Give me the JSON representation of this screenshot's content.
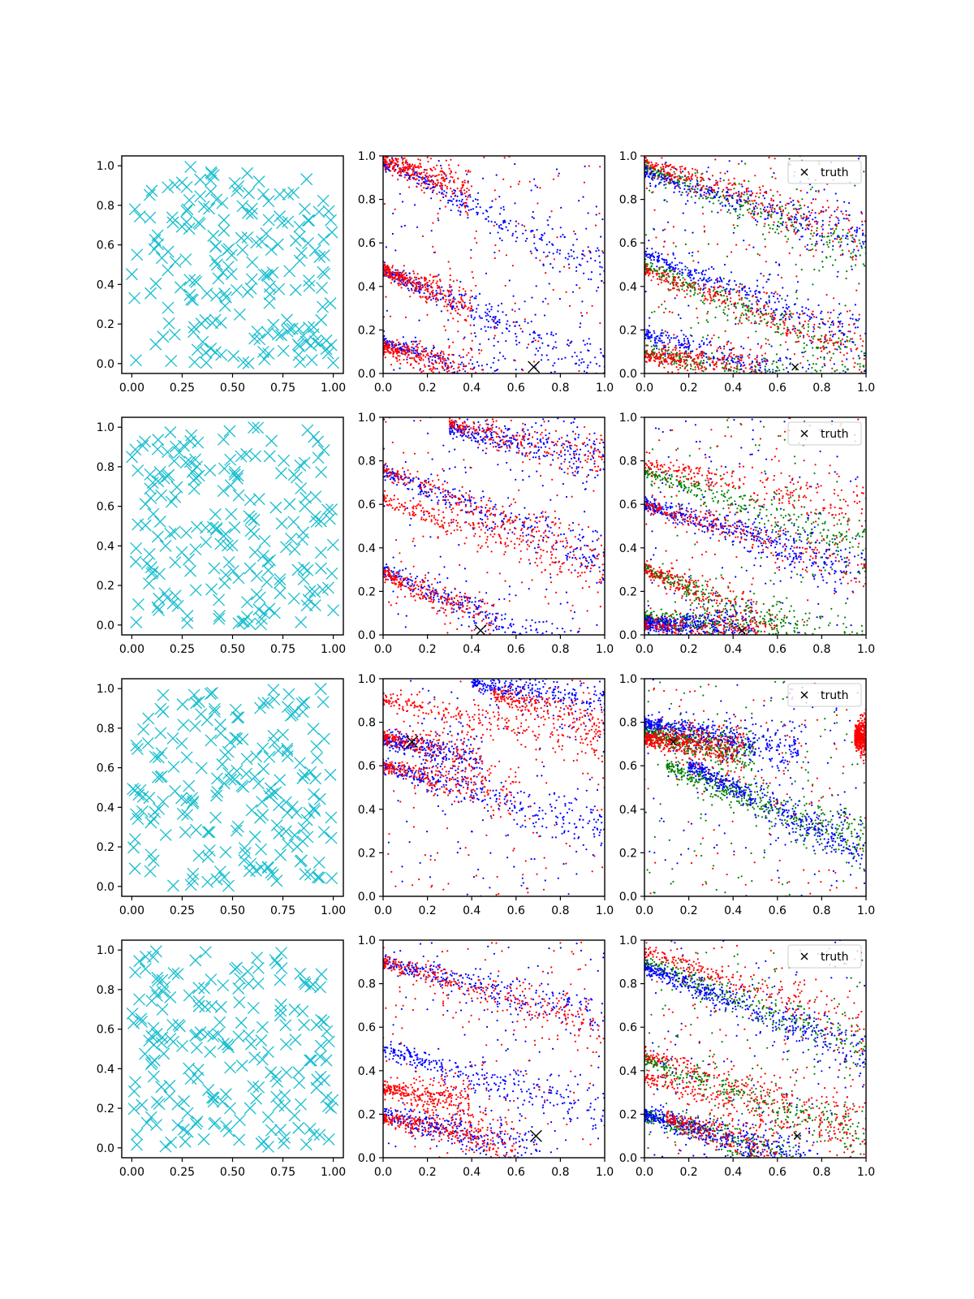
{
  "figure": {
    "rows": 4,
    "cols": 3
  },
  "colors": {
    "samples": "#17becf",
    "red": "#ff0000",
    "blue": "#0000ff",
    "green": "#008000",
    "truth": "#000000"
  },
  "legend_label": "truth",
  "chart_data": [
    {
      "type": "scatter",
      "row": 0,
      "col": 0,
      "panel": "samples",
      "xlim": [
        -0.05,
        1.05
      ],
      "ylim": [
        -0.05,
        1.05
      ],
      "xticks": [
        "0.00",
        "0.25",
        "0.50",
        "0.75",
        "1.00"
      ],
      "yticks": [
        "0.0",
        "0.2",
        "0.4",
        "0.6",
        "0.8",
        "1.0"
      ],
      "marker": "x",
      "n_points": 200,
      "distribution": "uniform"
    },
    {
      "type": "scatter",
      "row": 0,
      "col": 1,
      "panel": "posterior",
      "xlim": [
        0,
        1
      ],
      "ylim": [
        0,
        1
      ],
      "xticks": [
        "0.0",
        "0.2",
        "0.4",
        "0.6",
        "0.8",
        "1.0"
      ],
      "yticks": [
        "0.0",
        "0.2",
        "0.4",
        "0.6",
        "0.8",
        "1.0"
      ],
      "truth": [
        0.68,
        0.03
      ],
      "series": [
        {
          "color": "blue",
          "bands": [
            {
              "x0": 0.0,
              "y0": 0.97,
              "slope": -0.5
            },
            {
              "x0": 0.0,
              "y0": 0.47,
              "slope": -0.45
            },
            {
              "x0": 0.0,
              "y0": 0.15,
              "slope": -0.35
            }
          ]
        },
        {
          "color": "red",
          "bands": [
            {
              "x0": 0.0,
              "y0": 0.98,
              "slope": -0.35,
              "x_end": 0.4
            },
            {
              "x0": 0.0,
              "y0": 0.48,
              "slope": -0.45,
              "x_end": 0.4
            },
            {
              "x0": 0.0,
              "y0": 0.12,
              "slope": -0.3,
              "x_end": 0.45
            }
          ]
        }
      ]
    },
    {
      "type": "scatter",
      "row": 0,
      "col": 2,
      "panel": "posterior",
      "xlim": [
        0,
        1
      ],
      "ylim": [
        0,
        1
      ],
      "xticks": [
        "0.0",
        "0.2",
        "0.4",
        "0.6",
        "0.8",
        "1.0"
      ],
      "yticks": [
        "0.0",
        "0.2",
        "0.4",
        "0.6",
        "0.8",
        "1.0"
      ],
      "truth": [
        0.68,
        0.03
      ],
      "legend": true,
      "series": [
        {
          "color": "green",
          "bands": [
            {
              "x0": 0.0,
              "y0": 0.95,
              "slope": -0.4
            },
            {
              "x0": 0.0,
              "y0": 0.5,
              "slope": -0.45
            },
            {
              "x0": 0.0,
              "y0": 0.1,
              "slope": -0.2
            }
          ]
        },
        {
          "color": "blue",
          "bands": [
            {
              "x0": 0.0,
              "y0": 0.92,
              "slope": -0.3
            },
            {
              "x0": 0.0,
              "y0": 0.55,
              "slope": -0.4
            },
            {
              "x0": 0.0,
              "y0": 0.18,
              "slope": -0.3
            }
          ]
        },
        {
          "color": "red",
          "bands": [
            {
              "x0": 0.0,
              "y0": 0.97,
              "slope": -0.35
            },
            {
              "x0": 0.0,
              "y0": 0.48,
              "slope": -0.4
            },
            {
              "x0": 0.0,
              "y0": 0.08,
              "slope": -0.1,
              "x_end": 0.55
            }
          ]
        }
      ]
    },
    {
      "type": "scatter",
      "row": 1,
      "col": 0,
      "panel": "samples",
      "xlim": [
        -0.05,
        1.05
      ],
      "ylim": [
        -0.05,
        1.05
      ],
      "xticks": [
        "0.00",
        "0.25",
        "0.50",
        "0.75",
        "1.00"
      ],
      "yticks": [
        "0.0",
        "0.2",
        "0.4",
        "0.6",
        "0.8",
        "1.0"
      ],
      "marker": "x",
      "n_points": 200,
      "distribution": "uniform"
    },
    {
      "type": "scatter",
      "row": 1,
      "col": 1,
      "panel": "posterior",
      "xlim": [
        0,
        1
      ],
      "ylim": [
        0,
        1
      ],
      "xticks": [
        "0.0",
        "0.2",
        "0.4",
        "0.6",
        "0.8",
        "1.0"
      ],
      "yticks": [
        "0.0",
        "0.2",
        "0.4",
        "0.6",
        "0.8",
        "1.0"
      ],
      "truth": [
        0.44,
        0.02
      ],
      "series": [
        {
          "color": "blue",
          "bands": [
            {
              "x0": 0.0,
              "y0": 0.75,
              "slope": -0.4
            },
            {
              "x0": 0.0,
              "y0": 0.3,
              "slope": -0.45
            },
            {
              "x0": 0.3,
              "y0": 0.95,
              "slope": -0.2
            }
          ]
        },
        {
          "color": "red",
          "bands": [
            {
              "x0": 0.0,
              "y0": 0.76,
              "slope": -0.4
            },
            {
              "x0": 0.0,
              "y0": 0.62,
              "slope": -0.35
            },
            {
              "x0": 0.0,
              "y0": 0.28,
              "slope": -0.45,
              "x_end": 0.5
            },
            {
              "x0": 0.3,
              "y0": 0.97,
              "slope": -0.25
            }
          ]
        }
      ]
    },
    {
      "type": "scatter",
      "row": 1,
      "col": 2,
      "panel": "posterior",
      "xlim": [
        0,
        1
      ],
      "ylim": [
        0,
        1
      ],
      "xticks": [
        "0.0",
        "0.2",
        "0.4",
        "0.6",
        "0.8",
        "1.0"
      ],
      "yticks": [
        "0.0",
        "0.2",
        "0.4",
        "0.6",
        "0.8",
        "1.0"
      ],
      "truth": [
        0.44,
        0.02
      ],
      "legend": true,
      "series": [
        {
          "color": "green",
          "bands": [
            {
              "x0": 0.0,
              "y0": 0.75,
              "slope": -0.35
            },
            {
              "x0": 0.0,
              "y0": 0.3,
              "slope": -0.4
            },
            {
              "x0": 0.0,
              "y0": 0.08,
              "slope": -0.1,
              "x_end": 0.6
            }
          ]
        },
        {
          "color": "blue",
          "bands": [
            {
              "x0": 0.0,
              "y0": 0.6,
              "slope": -0.3
            },
            {
              "x0": 0.0,
              "y0": 0.05,
              "slope": -0.05,
              "x_end": 0.5
            }
          ]
        },
        {
          "color": "red",
          "bands": [
            {
              "x0": 0.0,
              "y0": 0.78,
              "slope": -0.2
            },
            {
              "x0": 0.0,
              "y0": 0.6,
              "slope": -0.3
            },
            {
              "x0": 0.0,
              "y0": 0.3,
              "slope": -0.4,
              "x_end": 0.5
            },
            {
              "x0": 0.0,
              "y0": 0.05,
              "slope": -0.08,
              "x_end": 0.6
            }
          ]
        }
      ]
    },
    {
      "type": "scatter",
      "row": 2,
      "col": 0,
      "panel": "samples",
      "xlim": [
        -0.05,
        1.05
      ],
      "ylim": [
        -0.05,
        1.05
      ],
      "xticks": [
        "0.00",
        "0.25",
        "0.50",
        "0.75",
        "1.00"
      ],
      "yticks": [
        "0.0",
        "0.2",
        "0.4",
        "0.6",
        "0.8",
        "1.0"
      ],
      "marker": "x",
      "n_points": 200,
      "distribution": "uniform"
    },
    {
      "type": "scatter",
      "row": 2,
      "col": 1,
      "panel": "posterior",
      "xlim": [
        0,
        1
      ],
      "ylim": [
        0,
        1
      ],
      "xticks": [
        "0.0",
        "0.2",
        "0.4",
        "0.6",
        "0.8",
        "1.0"
      ],
      "yticks": [
        "0.0",
        "0.2",
        "0.4",
        "0.6",
        "0.8",
        "1.0"
      ],
      "truth": [
        0.13,
        0.71
      ],
      "series": [
        {
          "color": "blue",
          "bands": [
            {
              "x0": 0.0,
              "y0": 0.72,
              "slope": -0.2,
              "x_end": 0.45
            },
            {
              "x0": 0.0,
              "y0": 0.6,
              "slope": -0.3
            },
            {
              "x0": 0.4,
              "y0": 0.98,
              "slope": -0.15
            }
          ]
        },
        {
          "color": "red",
          "bands": [
            {
              "x0": 0.0,
              "y0": 0.73,
              "slope": -0.18,
              "x_end": 0.45
            },
            {
              "x0": 0.0,
              "y0": 0.6,
              "slope": -0.25,
              "x_end": 0.6
            },
            {
              "x0": 0.5,
              "y0": 0.93,
              "slope": -0.3
            },
            {
              "x0": 0.0,
              "y0": 0.9,
              "slope": -0.2
            }
          ]
        }
      ]
    },
    {
      "type": "scatter",
      "row": 2,
      "col": 2,
      "panel": "posterior",
      "xlim": [
        0,
        1
      ],
      "ylim": [
        0,
        1
      ],
      "xticks": [
        "0.0",
        "0.2",
        "0.4",
        "0.6",
        "0.8",
        "1.0"
      ],
      "yticks": [
        "0.0",
        "0.2",
        "0.4",
        "0.6",
        "0.8",
        "1.0"
      ],
      "truth": [
        0.13,
        0.71
      ],
      "legend": true,
      "series": [
        {
          "color": "green",
          "bands": [
            {
              "x0": 0.0,
              "y0": 0.75,
              "slope": -0.2,
              "x_end": 0.5
            },
            {
              "x0": 0.1,
              "y0": 0.6,
              "slope": -0.4
            }
          ]
        },
        {
          "color": "blue",
          "bands": [
            {
              "x0": 0.0,
              "y0": 0.8,
              "slope": -0.2,
              "x_end": 0.7
            },
            {
              "x0": 0.2,
              "y0": 0.6,
              "slope": -0.5
            }
          ]
        },
        {
          "color": "red",
          "bands": [
            {
              "x0": 0.0,
              "y0": 0.72,
              "slope": -0.1,
              "x_end": 0.45
            },
            {
              "x0": 0.95,
              "y0": 0.73,
              "slope": 0.0
            }
          ]
        }
      ]
    },
    {
      "type": "scatter",
      "row": 3,
      "col": 0,
      "panel": "samples",
      "xlim": [
        -0.05,
        1.05
      ],
      "ylim": [
        -0.05,
        1.05
      ],
      "xticks": [
        "0.00",
        "0.25",
        "0.50",
        "0.75",
        "1.00"
      ],
      "yticks": [
        "0.0",
        "0.2",
        "0.4",
        "0.6",
        "0.8",
        "1.0"
      ],
      "marker": "x",
      "n_points": 200,
      "distribution": "uniform"
    },
    {
      "type": "scatter",
      "row": 3,
      "col": 1,
      "panel": "posterior",
      "xlim": [
        0,
        1
      ],
      "ylim": [
        0,
        1
      ],
      "xticks": [
        "0.0",
        "0.2",
        "0.4",
        "0.6",
        "0.8",
        "1.0"
      ],
      "yticks": [
        "0.0",
        "0.2",
        "0.4",
        "0.6",
        "0.8",
        "1.0"
      ],
      "truth": [
        0.69,
        0.1
      ],
      "series": [
        {
          "color": "blue",
          "bands": [
            {
              "x0": 0.0,
              "y0": 0.2,
              "slope": -0.25,
              "x_end": 0.7
            },
            {
              "x0": 0.0,
              "y0": 0.5,
              "slope": -0.3
            },
            {
              "x0": 0.0,
              "y0": 0.9,
              "slope": -0.25
            }
          ]
        },
        {
          "color": "red",
          "bands": [
            {
              "x0": 0.0,
              "y0": 0.18,
              "slope": -0.2,
              "x_end": 0.6
            },
            {
              "x0": 0.0,
              "y0": 0.32,
              "slope": -0.2,
              "x_end": 0.4
            },
            {
              "x0": 0.0,
              "y0": 0.9,
              "slope": -0.3
            }
          ]
        }
      ]
    },
    {
      "type": "scatter",
      "row": 3,
      "col": 2,
      "panel": "posterior",
      "xlim": [
        0,
        1
      ],
      "ylim": [
        0,
        1
      ],
      "xticks": [
        "0.0",
        "0.2",
        "0.4",
        "0.6",
        "0.8",
        "1.0"
      ],
      "yticks": [
        "0.0",
        "0.2",
        "0.4",
        "0.6",
        "0.8",
        "1.0"
      ],
      "truth": [
        0.69,
        0.1
      ],
      "legend": true,
      "series": [
        {
          "color": "green",
          "bands": [
            {
              "x0": 0.0,
              "y0": 0.9,
              "slope": -0.4
            },
            {
              "x0": 0.0,
              "y0": 0.45,
              "slope": -0.35
            },
            {
              "x0": 0.0,
              "y0": 0.2,
              "slope": -0.3,
              "x_end": 0.7
            }
          ]
        },
        {
          "color": "blue",
          "bands": [
            {
              "x0": 0.0,
              "y0": 0.88,
              "slope": -0.4
            },
            {
              "x0": 0.0,
              "y0": 0.2,
              "slope": -0.3,
              "x_end": 0.75
            }
          ]
        },
        {
          "color": "red",
          "bands": [
            {
              "x0": 0.0,
              "y0": 0.95,
              "slope": -0.35
            },
            {
              "x0": 0.0,
              "y0": 0.47,
              "slope": -0.3
            },
            {
              "x0": 0.0,
              "y0": 0.37,
              "slope": -0.3
            },
            {
              "x0": 0.1,
              "y0": 0.18,
              "slope": -0.3,
              "x_end": 0.6
            }
          ]
        }
      ]
    }
  ]
}
